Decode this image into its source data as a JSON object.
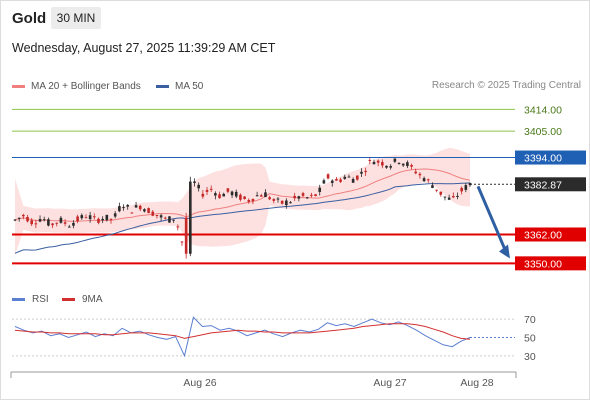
{
  "header": {
    "symbol": "Gold",
    "timeframe": "30 MIN",
    "datetime": "Wednesday, August 27, 2025 11:39:29 AM CET"
  },
  "legend": {
    "ma20_label": "MA 20 + Bollinger Bands",
    "ma50_label": "MA 50",
    "rsi_label": "RSI",
    "rsi_ma_label": "9MA",
    "research": "Research © 2025 Trading Central"
  },
  "colors": {
    "candle_up": "#2b2b2b",
    "candle_down": "#c62828",
    "ma20": "#f08080",
    "ma50": "#3a5fa0",
    "bollinger_fill": "#fde0e0",
    "resistance": "#8bc34a",
    "pivot": "#1f5fb4",
    "support": "#e00000",
    "last_price": "#2b2b2b",
    "rsi": "#5b7fd1",
    "rsi_ma": "#d32f2f",
    "arrow": "#2f5fa3"
  },
  "chart_data": [
    {
      "type": "candlestick",
      "title": "Gold",
      "x_labels": [
        "Aug 26",
        "Aug 27",
        "Aug 28"
      ],
      "ylim": [
        3341,
        3420
      ],
      "levels": [
        {
          "value": 3414.0,
          "label": "3414.00",
          "kind": "resistance"
        },
        {
          "value": 3405.0,
          "label": "3405.00",
          "kind": "resistance"
        },
        {
          "value": 3394.0,
          "label": "3394.00",
          "kind": "pivot"
        },
        {
          "value": 3362.0,
          "label": "3362.00",
          "kind": "support"
        },
        {
          "value": 3350.0,
          "label": "3350.00",
          "kind": "support"
        }
      ],
      "last_price": {
        "value": 3382.87,
        "label": "3382.87"
      },
      "forecast": {
        "direction": "down",
        "from": 3382,
        "to": 3352
      },
      "ohlc_anchors": [
        [
          3369,
          3371,
          3366,
          3368
        ],
        [
          3368,
          3372,
          3367,
          3370
        ],
        [
          3370,
          3371,
          3366,
          3367
        ],
        [
          3367,
          3370,
          3364,
          3369
        ],
        [
          3369,
          3370,
          3366,
          3366
        ],
        [
          3366,
          3369,
          3365,
          3368
        ],
        [
          3368,
          3370,
          3365,
          3366
        ],
        [
          3366,
          3369,
          3365,
          3368
        ],
        [
          3368,
          3371,
          3367,
          3370
        ],
        [
          3370,
          3372,
          3367,
          3368
        ],
        [
          3368,
          3371,
          3366,
          3369
        ],
        [
          3369,
          3371,
          3367,
          3368
        ],
        [
          3368,
          3376,
          3367,
          3375
        ],
        [
          3375,
          3378,
          3371,
          3372
        ],
        [
          3372,
          3376,
          3370,
          3374
        ],
        [
          3374,
          3376,
          3371,
          3372
        ],
        [
          3372,
          3374,
          3368,
          3370
        ],
        [
          3370,
          3372,
          3367,
          3368
        ],
        [
          3368,
          3371,
          3366,
          3369
        ],
        [
          3369,
          3371,
          3352,
          3355
        ],
        [
          3355,
          3386,
          3353,
          3384
        ],
        [
          3384,
          3386,
          3377,
          3379
        ],
        [
          3379,
          3383,
          3376,
          3381
        ],
        [
          3381,
          3383,
          3377,
          3378
        ],
        [
          3378,
          3382,
          3376,
          3380
        ],
        [
          3380,
          3384,
          3377,
          3378
        ],
        [
          3378,
          3381,
          3374,
          3376
        ],
        [
          3376,
          3380,
          3373,
          3378
        ],
        [
          3378,
          3382,
          3376,
          3379
        ],
        [
          3379,
          3381,
          3374,
          3376
        ],
        [
          3376,
          3379,
          3373,
          3375
        ],
        [
          3375,
          3379,
          3372,
          3376
        ],
        [
          3376,
          3380,
          3374,
          3378
        ],
        [
          3378,
          3382,
          3376,
          3377
        ],
        [
          3377,
          3381,
          3375,
          3379
        ],
        [
          3379,
          3387,
          3378,
          3386
        ],
        [
          3386,
          3389,
          3382,
          3384
        ],
        [
          3384,
          3388,
          3381,
          3386
        ],
        [
          3386,
          3390,
          3383,
          3385
        ],
        [
          3385,
          3389,
          3382,
          3388
        ],
        [
          3388,
          3394,
          3387,
          3393
        ],
        [
          3393,
          3396,
          3390,
          3392
        ],
        [
          3392,
          3395,
          3389,
          3391
        ],
        [
          3391,
          3394,
          3388,
          3393
        ],
        [
          3393,
          3395,
          3390,
          3391
        ],
        [
          3391,
          3393,
          3386,
          3388
        ],
        [
          3388,
          3390,
          3383,
          3385
        ],
        [
          3385,
          3387,
          3380,
          3382
        ],
        [
          3382,
          3384,
          3376,
          3378
        ],
        [
          3378,
          3381,
          3375,
          3376
        ],
        [
          3376,
          3381,
          3375,
          3380
        ],
        [
          3380,
          3384,
          3379,
          3383
        ]
      ]
    },
    {
      "type": "line",
      "title": "RSI",
      "y_ticks": [
        "70",
        "50",
        "30"
      ],
      "ylim": [
        20,
        80
      ],
      "series": [
        {
          "name": "RSI",
          "values": [
            62,
            58,
            55,
            57,
            52,
            54,
            50,
            53,
            56,
            51,
            54,
            52,
            60,
            55,
            57,
            53,
            50,
            48,
            51,
            30,
            72,
            62,
            63,
            58,
            60,
            57,
            52,
            55,
            58,
            54,
            51,
            55,
            58,
            56,
            59,
            66,
            63,
            65,
            62,
            66,
            70,
            66,
            64,
            67,
            63,
            58,
            52,
            47,
            42,
            40,
            46,
            50
          ]
        },
        {
          "name": "9MA",
          "values": [
            58,
            57,
            56,
            56,
            55,
            55,
            54,
            54,
            54,
            54,
            53,
            53,
            54,
            55,
            55,
            55,
            54,
            53,
            52,
            49,
            51,
            53,
            55,
            56,
            57,
            58,
            57,
            57,
            56,
            56,
            55,
            55,
            55,
            55,
            56,
            57,
            58,
            59,
            60,
            62,
            63,
            64,
            65,
            65,
            65,
            64,
            62,
            59,
            56,
            52,
            49,
            48
          ]
        }
      ]
    }
  ]
}
